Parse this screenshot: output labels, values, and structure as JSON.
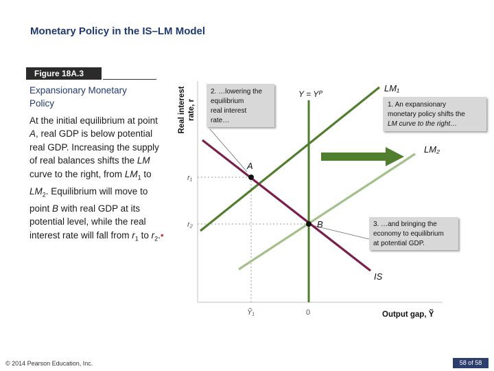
{
  "slide": {
    "title": "Monetary Policy in the IS–LM Model",
    "figure_label": "Figure 18A.3",
    "subtitle": "Expansionary Monetary Policy",
    "body": {
      "t1": "At the initial equilibrium at point ",
      "a": "A",
      "t2": ", real GDP is below potential real GDP. Increasing the supply of real balances shifts the ",
      "lm": "LM",
      "t3": " curve to the right, from ",
      "lm1": "LM",
      "lm1_sub": "1",
      "t4": " to ",
      "lm2": "LM",
      "lm2_sub": "2",
      "t5": ". Equilibrium will move to point ",
      "b": "B",
      "t6": " with real GDP at its potential level, while the real interest rate will fall from ",
      "r1": "r",
      "r1_sub": "1",
      "t7": " to ",
      "r2": "r",
      "r2_sub": "2",
      "t8": ".",
      "bullet": "•"
    },
    "copyright": "© 2014 Pearson Education, Inc.",
    "page": "58 of 58"
  },
  "diagram": {
    "y_axis_line1": "Real interest",
    "y_axis_line2": "rate, r",
    "x_axis_label": "Output gap, Ỹ",
    "tick_y1": "r₁",
    "tick_y2": "r₂",
    "tick_x1": "Ỹ₁",
    "tick_x2": "0",
    "potential_label": "Y = Yᴾ",
    "curve_lm1": "LM₁",
    "curve_lm2": "LM₂",
    "curve_is": "IS",
    "point_a": "A",
    "point_b": "B",
    "callout1": [
      "1. An expansionary",
      "monetary policy shifts the",
      "LM curve to the right…"
    ],
    "callout2": [
      "2. …lowering the",
      "equilibrium",
      "real interest",
      "rate…"
    ],
    "callout3": [
      "3. …and bringing the",
      "economy to equilibrium",
      "at potential GDP."
    ],
    "colors": {
      "lm1": "#4f7f2e",
      "lm2": "#a3bf8a",
      "is": "#7a1f4c",
      "potential": "#4f7f2e",
      "arrow": "#4f7f2e",
      "callout_bg": "#d8d8d8",
      "title": "#1f3a6e"
    }
  }
}
